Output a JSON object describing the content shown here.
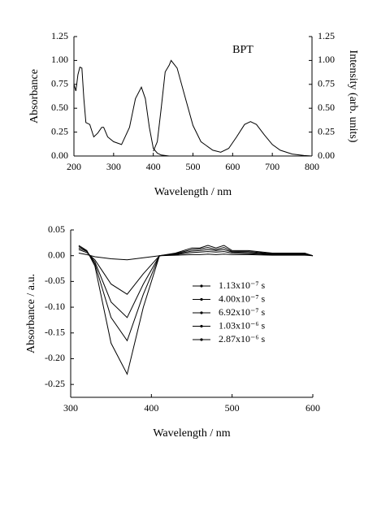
{
  "chart_data": [
    {
      "type": "line",
      "annotation": "BPT",
      "xlabel": "Wavelength / nm",
      "ylabel": "Absorbance",
      "y2label": "Intensity (arb. units)",
      "xlim": [
        200,
        800
      ],
      "xticks": [
        200,
        300,
        400,
        500,
        600,
        700,
        800
      ],
      "ylim": [
        0,
        1.25
      ],
      "yticks": [
        {
          "value": 0,
          "label": "0.00"
        },
        0.25,
        {
          "value": 0.5,
          "label": "0.50"
        },
        0.75,
        {
          "value": 1,
          "label": "1.00"
        },
        1.25
      ],
      "y2lim": [
        0,
        1.25
      ],
      "y2ticks": [
        {
          "value": 0,
          "label": "0.00"
        },
        0.25,
        {
          "value": 0.5,
          "label": "0.50"
        },
        0.75,
        {
          "value": 1,
          "label": "1.00"
        },
        1.25
      ],
      "series": [
        {
          "color": "#000000",
          "x": [
            200,
            205,
            210,
            215,
            220,
            225,
            230,
            240,
            250,
            260,
            270,
            275,
            285,
            300,
            320,
            340,
            355,
            370,
            380,
            390,
            400,
            410,
            420,
            440
          ],
          "values": [
            0.75,
            0.68,
            0.85,
            0.93,
            0.92,
            0.6,
            0.35,
            0.33,
            0.2,
            0.24,
            0.3,
            0.3,
            0.2,
            0.15,
            0.12,
            0.3,
            0.6,
            0.72,
            0.6,
            0.3,
            0.08,
            0.03,
            0.01,
            0
          ]
        },
        {
          "color": "#000000",
          "axis": "y2",
          "x": [
            400,
            410,
            420,
            430,
            440,
            445,
            460,
            480,
            500,
            520,
            550,
            570,
            590,
            610,
            630,
            645,
            660,
            680,
            700,
            720,
            750,
            780,
            800
          ],
          "values": [
            0.05,
            0.15,
            0.5,
            0.88,
            0.95,
            1.0,
            0.92,
            0.62,
            0.32,
            0.15,
            0.06,
            0.04,
            0.08,
            0.2,
            0.33,
            0.36,
            0.33,
            0.22,
            0.12,
            0.06,
            0.02,
            0.005,
            0
          ]
        }
      ]
    },
    {
      "type": "line",
      "xlabel": "Wavelength / nm",
      "ylabel": "Absorbance / a.u.",
      "legend": "right",
      "xlim": [
        300,
        600
      ],
      "xticks": [
        300,
        400,
        500,
        600
      ],
      "ylim": [
        -0.275,
        0.05
      ],
      "yticks": [
        0.05,
        {
          "value": 0,
          "label": "0.00"
        },
        -0.05,
        {
          "value": -0.1,
          "label": "-0.10"
        },
        -0.15,
        {
          "value": -0.2,
          "label": "-0.20"
        },
        -0.25
      ],
      "x": [
        310,
        320,
        330,
        350,
        370,
        390,
        410,
        430,
        450,
        460,
        470,
        480,
        490,
        500,
        520,
        550,
        570,
        590,
        600
      ],
      "series": [
        {
          "name": "1.13x10⁻⁷ s",
          "color": "#000000",
          "values": [
            0.005,
            0.002,
            -0.002,
            -0.006,
            -0.008,
            -0.004,
            0,
            0.001,
            0.002,
            0.002,
            0.003,
            0.002,
            0.003,
            0.002,
            0.002,
            0.001,
            0.001,
            0.001,
            0
          ]
        },
        {
          "name": "4.00x10⁻⁷ s",
          "color": "#000000",
          "values": [
            0.012,
            0.006,
            -0.008,
            -0.055,
            -0.075,
            -0.035,
            0,
            0.002,
            0.006,
            0.007,
            0.008,
            0.007,
            0.008,
            0.005,
            0.004,
            0.002,
            0.002,
            0.002,
            0
          ]
        },
        {
          "name": "6.92x10⁻⁷ s",
          "color": "#000000",
          "values": [
            0.015,
            0.008,
            -0.012,
            -0.09,
            -0.12,
            -0.055,
            0,
            0.003,
            0.009,
            0.01,
            0.012,
            0.01,
            0.012,
            0.007,
            0.006,
            0.003,
            0.003,
            0.003,
            0
          ]
        },
        {
          "name": "1.03x10⁻⁶ s",
          "color": "#000000",
          "values": [
            0.018,
            0.009,
            -0.016,
            -0.12,
            -0.165,
            -0.075,
            0,
            0.004,
            0.012,
            0.013,
            0.016,
            0.012,
            0.016,
            0.008,
            0.008,
            0.004,
            0.004,
            0.004,
            0
          ]
        },
        {
          "name": "2.87x10⁻⁶ s",
          "color": "#000000",
          "values": [
            0.02,
            0.01,
            -0.02,
            -0.17,
            -0.23,
            -0.1,
            0,
            0.005,
            0.015,
            0.015,
            0.02,
            0.015,
            0.02,
            0.01,
            0.01,
            0.005,
            0.005,
            0.005,
            0
          ]
        }
      ]
    }
  ]
}
